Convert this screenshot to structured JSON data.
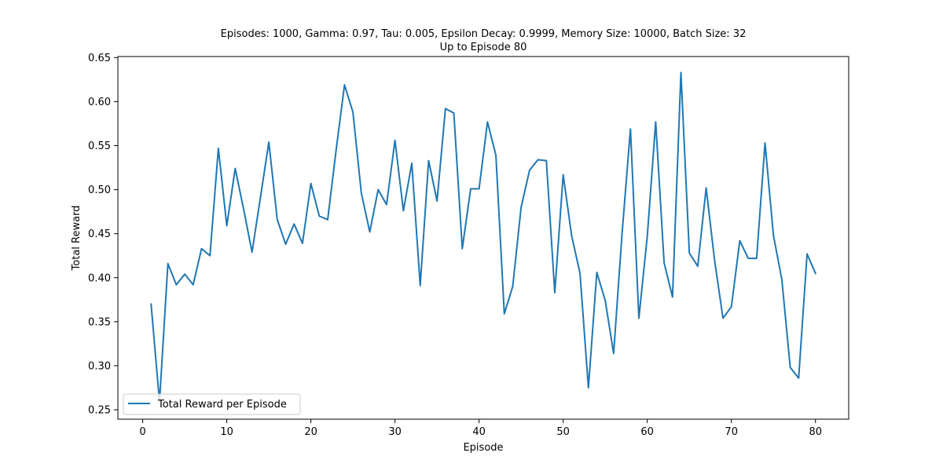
{
  "chart_data": {
    "type": "line",
    "title": "Episodes: 1000, Gamma: 0.97, Tau: 0.005, Epsilon Decay: 0.9999, Memory Size: 10000, Batch Size: 32",
    "subtitle": "Up to Episode 80",
    "xlabel": "Episode",
    "ylabel": "Total Reward",
    "xlim": [
      -2.95,
      83.95
    ],
    "ylim": [
      0.2393,
      0.6512
    ],
    "xticks": [
      0,
      10,
      20,
      30,
      40,
      50,
      60,
      70,
      80
    ],
    "yticks": [
      0.25,
      0.3,
      0.35,
      0.4,
      0.45,
      0.5,
      0.55,
      0.6,
      0.65
    ],
    "grid": false,
    "legend_position": "bottom-left",
    "series": [
      {
        "name": "Total Reward per Episode",
        "color": "#1f77b4",
        "x": [
          1,
          2,
          3,
          4,
          5,
          6,
          7,
          8,
          9,
          10,
          11,
          12,
          13,
          14,
          15,
          16,
          17,
          18,
          19,
          20,
          21,
          22,
          23,
          24,
          25,
          26,
          27,
          28,
          29,
          30,
          31,
          32,
          33,
          34,
          35,
          36,
          37,
          38,
          39,
          40,
          41,
          42,
          43,
          44,
          45,
          46,
          47,
          48,
          49,
          50,
          51,
          52,
          53,
          54,
          55,
          56,
          57,
          58,
          59,
          60,
          61,
          62,
          63,
          64,
          65,
          66,
          67,
          68,
          69,
          70,
          71,
          72,
          73,
          74,
          75,
          76,
          77,
          78,
          79,
          80
        ],
        "values": [
          0.37,
          0.259,
          0.416,
          0.392,
          0.404,
          0.392,
          0.433,
          0.425,
          0.547,
          0.459,
          0.524,
          0.478,
          0.429,
          0.491,
          0.554,
          0.466,
          0.438,
          0.461,
          0.439,
          0.507,
          0.47,
          0.466,
          0.545,
          0.619,
          0.588,
          0.496,
          0.452,
          0.5,
          0.483,
          0.556,
          0.476,
          0.53,
          0.391,
          0.533,
          0.487,
          0.592,
          0.587,
          0.433,
          0.501,
          0.501,
          0.577,
          0.539,
          0.359,
          0.39,
          0.48,
          0.522,
          0.534,
          0.533,
          0.383,
          0.517,
          0.448,
          0.405,
          0.275,
          0.406,
          0.374,
          0.314,
          0.45,
          0.569,
          0.354,
          0.447,
          0.577,
          0.417,
          0.378,
          0.633,
          0.428,
          0.413,
          0.502,
          0.42,
          0.354,
          0.367,
          0.442,
          0.422,
          0.422,
          0.553,
          0.448,
          0.398,
          0.298,
          0.286,
          0.427,
          0.405
        ]
      }
    ]
  }
}
